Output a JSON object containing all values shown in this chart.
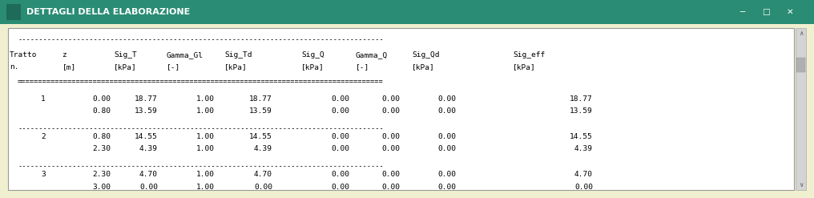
{
  "title": "DETTAGLI DELLA ELABORAZIONE",
  "title_bg": "#2a8c74",
  "title_fg": "#ffffff",
  "window_bg": "#f0f0d0",
  "content_bg": "#ffffff",
  "scrollbar_bg": "#d4d4d4",
  "scrollbar_thumb": "#b0b0b0",
  "rows": [
    {
      "tratto": "1",
      "data": [
        [
          "0.00",
          "18.77",
          "1.00",
          "18.77",
          "0.00",
          "0.00",
          "0.00",
          "18.77"
        ],
        [
          "0.80",
          "13.59",
          "1.00",
          "13.59",
          "0.00",
          "0.00",
          "0.00",
          "13.59"
        ]
      ]
    },
    {
      "tratto": "2",
      "data": [
        [
          "0.80",
          "14.55",
          "1.00",
          "14.55",
          "0.00",
          "0.00",
          "0.00",
          "14.55"
        ],
        [
          "2.30",
          "4.39",
          "1.00",
          "4.39",
          "0.00",
          "0.00",
          "0.00",
          "4.39"
        ]
      ]
    },
    {
      "tratto": "3",
      "data": [
        [
          "2.30",
          "4.70",
          "1.00",
          "4.70",
          "0.00",
          "0.00",
          "0.00",
          "4.70"
        ],
        [
          "3.00",
          "0.00",
          "1.00",
          "0.00",
          "0.00",
          "0.00",
          "0.00",
          "0.00"
        ]
      ]
    }
  ],
  "col_headers": [
    "Tratto\nn.",
    "z\n[m]",
    "Sig_T\n[kPa]",
    "Gamma_Gl\n[-]",
    "Sig_Td\n[kPa]",
    "Sig_Q\n[kPa]",
    "Gamma_Q\n[-]",
    "Sig_Qd\n[kPa]",
    "Sig_eff\n[kPa]"
  ],
  "title_fontsize": 8.0,
  "mono_fontsize": 6.8
}
